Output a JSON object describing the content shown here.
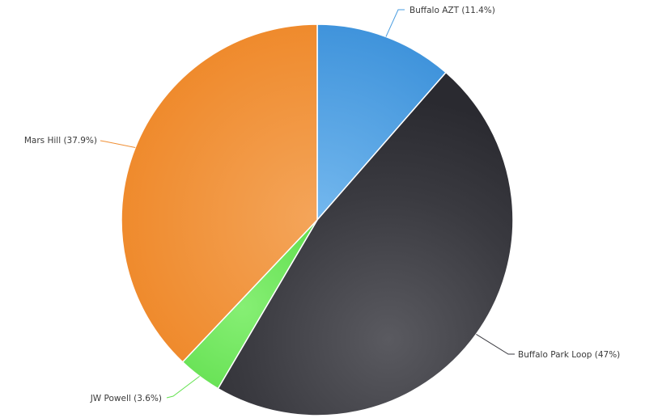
{
  "chart_data": {
    "type": "pie",
    "title": "",
    "slices": [
      {
        "label": "Buffalo AZT (11.4%)",
        "name": "Buffalo AZT",
        "value": 11.4,
        "color": "#4a9de0"
      },
      {
        "label": "Buffalo Park Loop (47%)",
        "name": "Buffalo Park Loop",
        "value": 47,
        "color": "#3a3a40"
      },
      {
        "label": "JW Powell (3.6%)",
        "name": "JW Powell",
        "value": 3.6,
        "color": "#63e24f"
      },
      {
        "label": "Mars Hill (37.9%)",
        "name": "Mars Hill",
        "value": 37.9,
        "color": "#f08f35"
      }
    ],
    "start_angle": "12 o'clock",
    "direction": "clockwise",
    "legend": "none",
    "labels": "outside with leader lines"
  }
}
